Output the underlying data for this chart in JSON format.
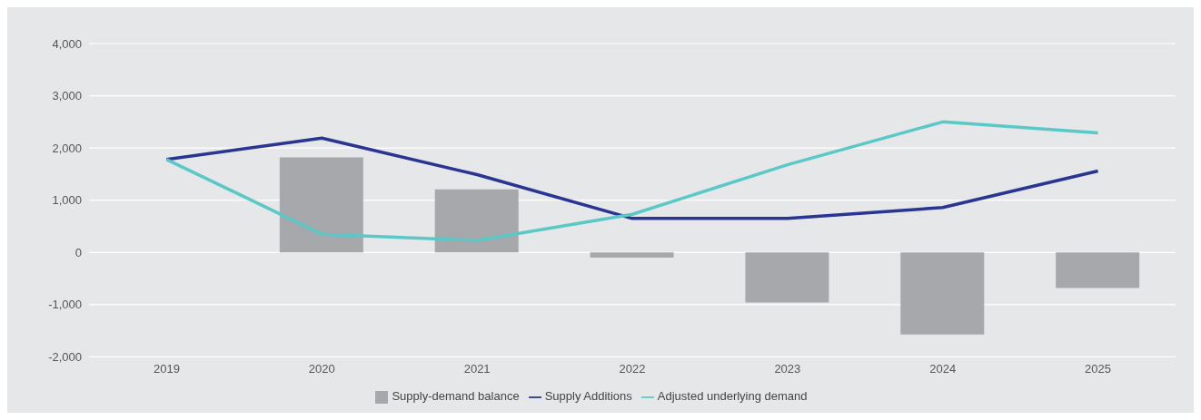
{
  "chart_data": {
    "type": "bar",
    "categories": [
      "2019",
      "2020",
      "2021",
      "2022",
      "2023",
      "2024",
      "2025"
    ],
    "series": [
      {
        "name": "Supply-demand balance",
        "color": "#a7a8ab",
        "values": [
          0,
          1820,
          1210,
          -100,
          -960,
          -1570,
          -680
        ]
      },
      {
        "name": "Supply Additions",
        "type": "line",
        "color": "#283593",
        "values": [
          1780,
          2190,
          1490,
          650,
          650,
          860,
          1560
        ]
      },
      {
        "name": "Adjusted underlying demand",
        "type": "line",
        "color": "#5bc8c8",
        "values": [
          1780,
          350,
          230,
          730,
          1680,
          2500,
          2290
        ]
      }
    ],
    "ylim": [
      -2000,
      4000
    ],
    "yticks": [
      {
        "value": -2000,
        "label": "-2,000"
      },
      {
        "value": -1000,
        "label": "-1,000"
      },
      0,
      {
        "value": 1000,
        "label": "1,000"
      },
      {
        "value": 2000,
        "label": "2,000"
      },
      {
        "value": 3000,
        "label": "3,000"
      },
      {
        "value": 4000,
        "label": "4,000"
      }
    ],
    "grid": "y",
    "legend": "bottom",
    "marker": "none",
    "line_style": "solid"
  }
}
